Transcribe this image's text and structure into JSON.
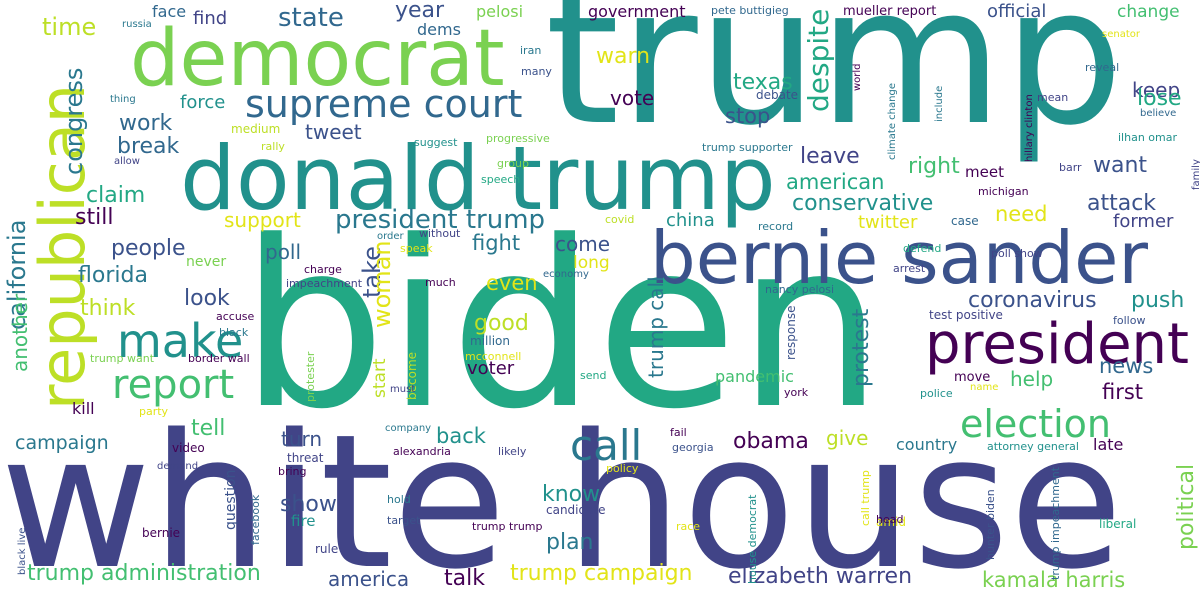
{
  "palette": {
    "dark_purple": "#440154",
    "indigo": "#3b528b",
    "slate_blue": "#414487",
    "teal_blue": "#2a788e",
    "teal": "#21918c",
    "green_teal": "#22a884",
    "green": "#43bf71",
    "lime_green": "#7ad151",
    "yellow_green": "#bddf26",
    "yellow": "#e2e418",
    "blue_gray": "#31688e"
  },
  "words": [
    {
      "text": "trump",
      "color": "#21918c",
      "orientation": "horizontal"
    },
    {
      "text": "biden",
      "color": "#22a884",
      "orientation": "horizontal"
    },
    {
      "text": "white house",
      "color": "#414487",
      "orientation": "horizontal"
    },
    {
      "text": "donald trump",
      "color": "#21918c",
      "orientation": "horizontal"
    },
    {
      "text": "democrat",
      "color": "#7ad151",
      "orientation": "horizontal"
    },
    {
      "text": "bernie sander",
      "color": "#3b528b",
      "orientation": "horizontal"
    },
    {
      "text": "republican",
      "color": "#bddf26",
      "orientation": "vertical"
    },
    {
      "text": "president",
      "color": "#440154",
      "orientation": "horizontal"
    },
    {
      "text": "supreme court",
      "color": "#31688e",
      "orientation": "horizontal"
    },
    {
      "text": "make",
      "color": "#21918c",
      "orientation": "horizontal"
    },
    {
      "text": "report",
      "color": "#43bf71",
      "orientation": "horizontal"
    },
    {
      "text": "call",
      "color": "#2a788e",
      "orientation": "horizontal"
    },
    {
      "text": "election",
      "color": "#43bf71",
      "orientation": "horizontal"
    },
    {
      "text": "state",
      "color": "#31688e",
      "orientation": "horizontal"
    },
    {
      "text": "president trump",
      "color": "#2a788e",
      "orientation": "horizontal"
    },
    {
      "text": "trump administration",
      "color": "#43bf71",
      "orientation": "horizontal"
    },
    {
      "text": "trump campaign",
      "color": "#e2e418",
      "orientation": "horizontal"
    },
    {
      "text": "elizabeth warren",
      "color": "#414487",
      "orientation": "horizontal"
    },
    {
      "text": "kamala harris",
      "color": "#7ad151",
      "orientation": "horizontal"
    },
    {
      "text": "california",
      "color": "#2a788e",
      "orientation": "vertical"
    },
    {
      "text": "congress",
      "color": "#2a788e",
      "orientation": "vertical"
    },
    {
      "text": "time",
      "color": "#bddf26",
      "orientation": "horizontal"
    },
    {
      "text": "face",
      "color": "#31688e",
      "orientation": "horizontal"
    },
    {
      "text": "russia",
      "color": "#2a788e",
      "orientation": "horizontal"
    },
    {
      "text": "find",
      "color": "#414487",
      "orientation": "horizontal"
    },
    {
      "text": "year",
      "color": "#3b528b",
      "orientation": "horizontal"
    },
    {
      "text": "dems",
      "color": "#31688e",
      "orientation": "horizontal"
    },
    {
      "text": "pelosi",
      "color": "#7ad151",
      "orientation": "horizontal"
    },
    {
      "text": "government",
      "color": "#440154",
      "orientation": "horizontal"
    },
    {
      "text": "pete buttigieg",
      "color": "#31688e",
      "orientation": "horizontal"
    },
    {
      "text": "mueller report",
      "color": "#440154",
      "orientation": "horizontal"
    },
    {
      "text": "official",
      "color": "#3b528b",
      "orientation": "horizontal"
    },
    {
      "text": "change",
      "color": "#43bf71",
      "orientation": "horizontal"
    },
    {
      "text": "senator",
      "color": "#e2e418",
      "orientation": "horizontal"
    },
    {
      "text": "warn",
      "color": "#e2e418",
      "orientation": "horizontal"
    },
    {
      "text": "texas",
      "color": "#22a884",
      "orientation": "horizontal"
    },
    {
      "text": "keep",
      "color": "#414487",
      "orientation": "horizontal"
    },
    {
      "text": "lose",
      "color": "#22a884",
      "orientation": "horizontal"
    },
    {
      "text": "vote",
      "color": "#440154",
      "orientation": "horizontal"
    },
    {
      "text": "stop",
      "color": "#3b528b",
      "orientation": "horizontal"
    },
    {
      "text": "despite",
      "color": "#22a884",
      "orientation": "vertical"
    },
    {
      "text": "tweet",
      "color": "#3b528b",
      "orientation": "horizontal"
    },
    {
      "text": "work",
      "color": "#31688e",
      "orientation": "horizontal"
    },
    {
      "text": "force",
      "color": "#21918c",
      "orientation": "horizontal"
    },
    {
      "text": "medium",
      "color": "#bddf26",
      "orientation": "horizontal"
    },
    {
      "text": "break",
      "color": "#31688e",
      "orientation": "horizontal"
    },
    {
      "text": "thing",
      "color": "#2a788e",
      "orientation": "horizontal"
    },
    {
      "text": "allow",
      "color": "#414487",
      "orientation": "horizontal"
    },
    {
      "text": "rally",
      "color": "#bddf26",
      "orientation": "horizontal"
    },
    {
      "text": "suggest",
      "color": "#21918c",
      "orientation": "horizontal"
    },
    {
      "text": "progressive",
      "color": "#7ad151",
      "orientation": "horizontal"
    },
    {
      "text": "group",
      "color": "#7ad151",
      "orientation": "horizontal"
    },
    {
      "text": "speech",
      "color": "#22a884",
      "orientation": "horizontal"
    },
    {
      "text": "trump supporter",
      "color": "#2a788e",
      "orientation": "horizontal"
    },
    {
      "text": "leave",
      "color": "#414487",
      "orientation": "horizontal"
    },
    {
      "text": "right",
      "color": "#43bf71",
      "orientation": "horizontal"
    },
    {
      "text": "meet",
      "color": "#440154",
      "orientation": "horizontal"
    },
    {
      "text": "want",
      "color": "#3b528b",
      "orientation": "horizontal"
    },
    {
      "text": "michigan",
      "color": "#440154",
      "orientation": "horizontal"
    },
    {
      "text": "barr",
      "color": "#414487",
      "orientation": "horizontal"
    },
    {
      "text": "american",
      "color": "#22a884",
      "orientation": "horizontal"
    },
    {
      "text": "conservative",
      "color": "#21918c",
      "orientation": "horizontal"
    },
    {
      "text": "attack",
      "color": "#3b528b",
      "orientation": "horizontal"
    },
    {
      "text": "need",
      "color": "#e2e418",
      "orientation": "horizontal"
    },
    {
      "text": "former",
      "color": "#414487",
      "orientation": "horizontal"
    },
    {
      "text": "twitter",
      "color": "#e2e418",
      "orientation": "horizontal"
    },
    {
      "text": "case",
      "color": "#31688e",
      "orientation": "horizontal"
    },
    {
      "text": "poll show",
      "color": "#414487",
      "orientation": "horizontal"
    },
    {
      "text": "defend",
      "color": "#22a884",
      "orientation": "horizontal"
    },
    {
      "text": "arrest",
      "color": "#414487",
      "orientation": "horizontal"
    },
    {
      "text": "claim",
      "color": "#22a884",
      "orientation": "horizontal"
    },
    {
      "text": "still",
      "color": "#440154",
      "orientation": "horizontal"
    },
    {
      "text": "support",
      "color": "#e2e418",
      "orientation": "horizontal"
    },
    {
      "text": "china",
      "color": "#21918c",
      "orientation": "horizontal"
    },
    {
      "text": "fight",
      "color": "#2a788e",
      "orientation": "horizontal"
    },
    {
      "text": "come",
      "color": "#3b528b",
      "orientation": "horizontal"
    },
    {
      "text": "take",
      "color": "#3b528b",
      "orientation": "vertical"
    },
    {
      "text": "woman",
      "color": "#e2e418",
      "orientation": "vertical"
    },
    {
      "text": "people",
      "color": "#3b528b",
      "orientation": "horizontal"
    },
    {
      "text": "florida",
      "color": "#2a788e",
      "orientation": "horizontal"
    },
    {
      "text": "poll",
      "color": "#31688e",
      "orientation": "horizontal"
    },
    {
      "text": "never",
      "color": "#7ad151",
      "orientation": "horizontal"
    },
    {
      "text": "charge",
      "color": "#440154",
      "orientation": "horizontal"
    },
    {
      "text": "impeachment",
      "color": "#414487",
      "orientation": "horizontal"
    },
    {
      "text": "without",
      "color": "#414487",
      "orientation": "horizontal"
    },
    {
      "text": "order",
      "color": "#2a788e",
      "orientation": "horizontal"
    },
    {
      "text": "speak",
      "color": "#e2e418",
      "orientation": "horizontal"
    },
    {
      "text": "covid",
      "color": "#bddf26",
      "orientation": "horizontal"
    },
    {
      "text": "record",
      "color": "#2a788e",
      "orientation": "horizontal"
    },
    {
      "text": "long",
      "color": "#e2e418",
      "orientation": "horizontal"
    },
    {
      "text": "economy",
      "color": "#31688e",
      "orientation": "horizontal"
    },
    {
      "text": "much",
      "color": "#440154",
      "orientation": "horizontal"
    },
    {
      "text": "even",
      "color": "#e2e418",
      "orientation": "horizontal"
    },
    {
      "text": "look",
      "color": "#3b528b",
      "orientation": "horizontal"
    },
    {
      "text": "think",
      "color": "#bddf26",
      "orientation": "horizontal"
    },
    {
      "text": "accuse",
      "color": "#440154",
      "orientation": "horizontal"
    },
    {
      "text": "black",
      "color": "#2a788e",
      "orientation": "horizontal"
    },
    {
      "text": "coronavirus",
      "color": "#3b528b",
      "orientation": "horizontal"
    },
    {
      "text": "push",
      "color": "#21918c",
      "orientation": "horizontal"
    },
    {
      "text": "nancy pelosi",
      "color": "#31688e",
      "orientation": "horizontal"
    },
    {
      "text": "test positive",
      "color": "#414487",
      "orientation": "horizontal"
    },
    {
      "text": "follow",
      "color": "#3b528b",
      "orientation": "horizontal"
    },
    {
      "text": "good",
      "color": "#bddf26",
      "orientation": "horizontal"
    },
    {
      "text": "million",
      "color": "#31688e",
      "orientation": "horizontal"
    },
    {
      "text": "trump call",
      "color": "#2a788e",
      "orientation": "vertical"
    },
    {
      "text": "response",
      "color": "#3b528b",
      "orientation": "vertical"
    },
    {
      "text": "another",
      "color": "#43bf71",
      "orientation": "vertical"
    },
    {
      "text": "trump want",
      "color": "#7ad151",
      "orientation": "horizontal"
    },
    {
      "text": "border wall",
      "color": "#440154",
      "orientation": "horizontal"
    },
    {
      "text": "protester",
      "color": "#7ad151",
      "orientation": "vertical"
    },
    {
      "text": "become",
      "color": "#bddf26",
      "orientation": "vertical"
    },
    {
      "text": "start",
      "color": "#bddf26",
      "orientation": "vertical"
    },
    {
      "text": "voter",
      "color": "#440154",
      "orientation": "horizontal"
    },
    {
      "text": "mcconnell",
      "color": "#e2e418",
      "orientation": "horizontal"
    },
    {
      "text": "pandemic",
      "color": "#43bf71",
      "orientation": "horizontal"
    },
    {
      "text": "must",
      "color": "#414487",
      "orientation": "horizontal"
    },
    {
      "text": "send",
      "color": "#22a884",
      "orientation": "horizontal"
    },
    {
      "text": "protest",
      "color": "#2a788e",
      "orientation": "vertical"
    },
    {
      "text": "move",
      "color": "#440154",
      "orientation": "horizontal"
    },
    {
      "text": "help",
      "color": "#43bf71",
      "orientation": "horizontal"
    },
    {
      "text": "news",
      "color": "#31688e",
      "orientation": "horizontal"
    },
    {
      "text": "first",
      "color": "#440154",
      "orientation": "horizontal"
    },
    {
      "text": "police",
      "color": "#21918c",
      "orientation": "horizontal"
    },
    {
      "text": "name",
      "color": "#e2e418",
      "orientation": "horizontal"
    },
    {
      "text": "york",
      "color": "#440154",
      "orientation": "horizontal"
    },
    {
      "text": "kill",
      "color": "#440154",
      "orientation": "horizontal"
    },
    {
      "text": "party",
      "color": "#e2e418",
      "orientation": "horizontal"
    },
    {
      "text": "tell",
      "color": "#43bf71",
      "orientation": "horizontal"
    },
    {
      "text": "campaign",
      "color": "#2a788e",
      "orientation": "horizontal"
    },
    {
      "text": "turn",
      "color": "#3b528b",
      "orientation": "horizontal"
    },
    {
      "text": "company",
      "color": "#2a788e",
      "orientation": "horizontal"
    },
    {
      "text": "back",
      "color": "#21918c",
      "orientation": "horizontal"
    },
    {
      "text": "fail",
      "color": "#440154",
      "orientation": "horizontal"
    },
    {
      "text": "obama",
      "color": "#440154",
      "orientation": "horizontal"
    },
    {
      "text": "give",
      "color": "#bddf26",
      "orientation": "horizontal"
    },
    {
      "text": "country",
      "color": "#2a788e",
      "orientation": "horizontal"
    },
    {
      "text": "late",
      "color": "#440154",
      "orientation": "horizontal"
    },
    {
      "text": "political",
      "color": "#7ad151",
      "orientation": "vertical"
    },
    {
      "text": "video",
      "color": "#440154",
      "orientation": "horizontal"
    },
    {
      "text": "alexandria",
      "color": "#440154",
      "orientation": "horizontal"
    },
    {
      "text": "likely",
      "color": "#414487",
      "orientation": "horizontal"
    },
    {
      "text": "georgia",
      "color": "#3b528b",
      "orientation": "horizontal"
    },
    {
      "text": "attorney general",
      "color": "#21918c",
      "orientation": "horizontal"
    },
    {
      "text": "threat",
      "color": "#414487",
      "orientation": "horizontal"
    },
    {
      "text": "bring",
      "color": "#440154",
      "orientation": "horizontal"
    },
    {
      "text": "policy",
      "color": "#e2e418",
      "orientation": "horizontal"
    },
    {
      "text": "know",
      "color": "#21918c",
      "orientation": "horizontal"
    },
    {
      "text": "show",
      "color": "#3b528b",
      "orientation": "horizontal"
    },
    {
      "text": "fire",
      "color": "#21918c",
      "orientation": "horizontal"
    },
    {
      "text": "question",
      "color": "#3b528b",
      "orientation": "vertical"
    },
    {
      "text": "facebook",
      "color": "#31688e",
      "orientation": "vertical"
    },
    {
      "text": "hold",
      "color": "#2a788e",
      "orientation": "horizontal"
    },
    {
      "text": "target",
      "color": "#3b528b",
      "orientation": "horizontal"
    },
    {
      "text": "candidate",
      "color": "#414487",
      "orientation": "horizontal"
    },
    {
      "text": "trump trump",
      "color": "#440154",
      "orientation": "horizontal"
    },
    {
      "text": "plan",
      "color": "#2a788e",
      "orientation": "horizontal"
    },
    {
      "text": "race",
      "color": "#e2e418",
      "orientation": "horizontal"
    },
    {
      "text": "house democrat",
      "color": "#21918c",
      "orientation": "vertical"
    },
    {
      "text": "call trump",
      "color": "#e2e418",
      "orientation": "vertical"
    },
    {
      "text": "amid",
      "color": "#e2e418",
      "orientation": "horizontal"
    },
    {
      "text": "head",
      "color": "#440154",
      "orientation": "horizontal"
    },
    {
      "text": "hunter biden",
      "color": "#3b528b",
      "orientation": "vertical"
    },
    {
      "text": "trump impeachment",
      "color": "#31688e",
      "orientation": "vertical"
    },
    {
      "text": "liberal",
      "color": "#22a884",
      "orientation": "horizontal"
    },
    {
      "text": "bernie",
      "color": "#440154",
      "orientation": "horizontal"
    },
    {
      "text": "rule",
      "color": "#414487",
      "orientation": "horizontal"
    },
    {
      "text": "talk",
      "color": "#440154",
      "orientation": "horizontal"
    },
    {
      "text": "america",
      "color": "#3b528b",
      "orientation": "horizontal"
    },
    {
      "text": "black live",
      "color": "#3b528b",
      "orientation": "vertical"
    },
    {
      "text": "demand",
      "color": "#414487",
      "orientation": "horizontal"
    },
    {
      "text": "iran",
      "color": "#2a788e",
      "orientation": "horizontal"
    },
    {
      "text": "many",
      "color": "#3b528b",
      "orientation": "horizontal"
    },
    {
      "text": "debate",
      "color": "#3b528b",
      "orientation": "horizontal"
    },
    {
      "text": "world",
      "color": "#440154",
      "orientation": "vertical"
    },
    {
      "text": "climate change",
      "color": "#2a788e",
      "orientation": "vertical"
    },
    {
      "text": "include",
      "color": "#2a788e",
      "orientation": "vertical"
    },
    {
      "text": "hillary clinton",
      "color": "#440154",
      "orientation": "vertical"
    },
    {
      "text": "reveal",
      "color": "#31688e",
      "orientation": "horizontal"
    },
    {
      "text": "mean",
      "color": "#414487",
      "orientation": "horizontal"
    },
    {
      "text": "believe",
      "color": "#31688e",
      "orientation": "horizontal"
    },
    {
      "text": "ilhan omar",
      "color": "#21918c",
      "orientation": "horizontal"
    },
    {
      "text": "family",
      "color": "#414487",
      "orientation": "vertical"
    }
  ]
}
